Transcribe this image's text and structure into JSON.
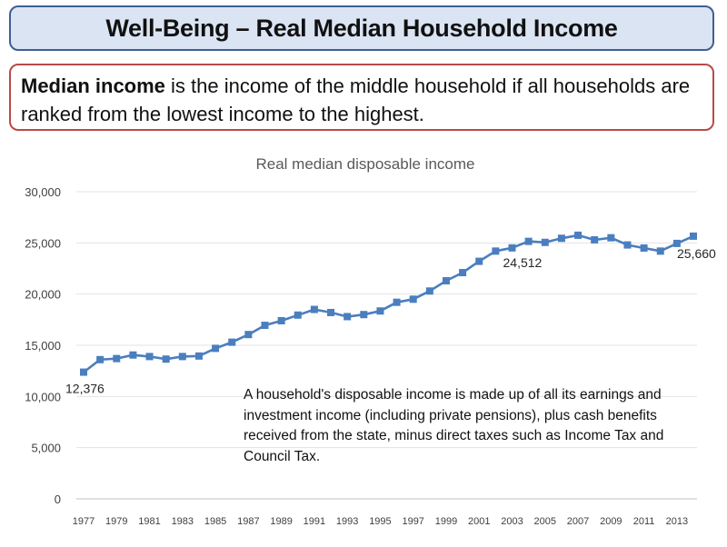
{
  "header": {
    "title": "Well-Being – Real Median Household Income"
  },
  "definition": {
    "term": "Median income",
    "text": " is the income of the middle household if all households are ranked from the lowest income to the highest."
  },
  "note": {
    "text": "A household's disposable income is made up of all its earnings and investment income (including private pensions), plus cash benefits received from the state, minus direct taxes such as Income Tax and Council Tax."
  },
  "colors": {
    "series": "#4a7ebf",
    "title_border": "#3f5f93",
    "title_fill": "#dbe4f3",
    "definition_border": "#b94a48"
  },
  "chart_data": {
    "type": "line",
    "title": "Real median disposable income",
    "xlabel": "",
    "ylabel": "",
    "x": [
      1977,
      1978,
      1979,
      1980,
      1981,
      1982,
      1983,
      1984,
      1985,
      1986,
      1987,
      1988,
      1989,
      1990,
      1991,
      1992,
      1993,
      1994,
      1995,
      1996,
      1997,
      1998,
      1999,
      2000,
      2001,
      2002,
      2003,
      2004,
      2005,
      2006,
      2007,
      2008,
      2009,
      2010,
      2011,
      2012,
      2013,
      2014
    ],
    "values": [
      12376,
      13600,
      13700,
      14050,
      13900,
      13650,
      13900,
      13950,
      14700,
      15300,
      16050,
      16950,
      17400,
      17950,
      18500,
      18200,
      17800,
      18000,
      18350,
      19200,
      19500,
      20300,
      21300,
      22100,
      23200,
      24200,
      24512,
      25150,
      25050,
      25450,
      25750,
      25300,
      25500,
      24800,
      24500,
      24200,
      24950,
      25660
    ],
    "point_labels": [
      {
        "x": 1977,
        "text": "12,376"
      },
      {
        "x": 2003,
        "text": "24,512"
      },
      {
        "x": 2014,
        "text": "25,660"
      }
    ],
    "ylim": [
      0,
      30000
    ],
    "yticks": [
      0,
      5000,
      10000,
      15000,
      20000,
      25000,
      30000
    ],
    "ytick_labels": [
      "0",
      "5,000",
      "10,000",
      "15,000",
      "20,000",
      "25,000",
      "30,000"
    ],
    "xtick_labels": [
      "1977",
      "1979",
      "1981",
      "1983",
      "1985",
      "1987",
      "1989",
      "1991",
      "1993",
      "1995",
      "1997",
      "1999",
      "2001",
      "2003",
      "2005",
      "2007",
      "2009",
      "2011",
      "2013"
    ],
    "grid": "horizontal",
    "legend": "none"
  }
}
